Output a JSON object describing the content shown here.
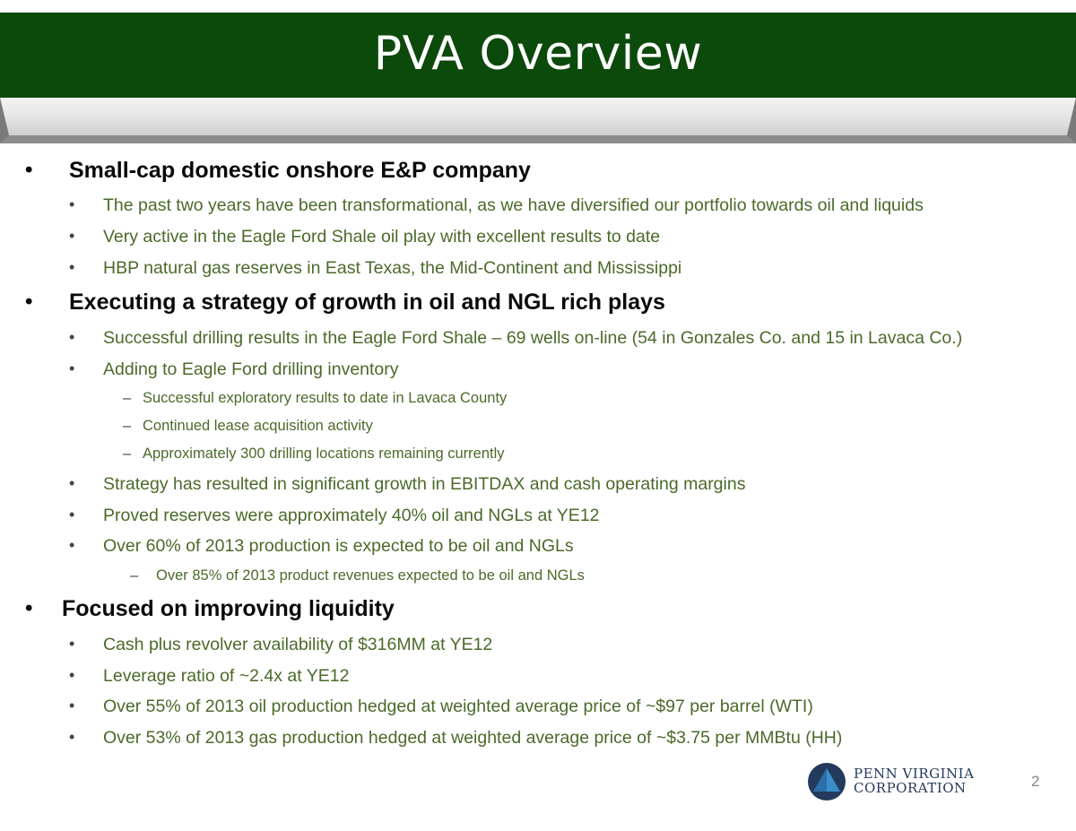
{
  "slide": {
    "title": "PVA Overview",
    "page_number": "2"
  },
  "sections": [
    {
      "heading": "Small-cap domestic onshore E&P company",
      "items": [
        {
          "text": "The past two years have been transformational, as we have diversified our portfolio towards oil and liquids"
        },
        {
          "text": "Very active in the Eagle Ford Shale oil play with excellent results to date"
        },
        {
          "text": "HBP natural gas reserves in East Texas, the Mid-Continent and Mississippi"
        }
      ]
    },
    {
      "heading": "Executing a strategy of growth in oil and NGL rich plays",
      "items": [
        {
          "text": "Successful drilling results in the Eagle Ford Shale – 69 wells on-line (54 in Gonzales Co. and 15 in Lavaca Co.)"
        },
        {
          "text": "Adding to Eagle Ford drilling inventory",
          "subitems": [
            "Successful exploratory results to date in Lavaca County",
            "Continued lease acquisition activity",
            "Approximately 300 drilling locations remaining currently"
          ]
        },
        {
          "text": "Strategy has resulted in significant growth in EBITDAX and cash operating margins"
        },
        {
          "text": "Proved reserves were approximately 40% oil and NGLs at YE12"
        },
        {
          "text": "Over 60% of 2013 production is expected to be oil and NGLs",
          "subitems": [
            "Over 85% of 2013 product revenues expected to be oil and NGLs"
          ]
        }
      ]
    },
    {
      "heading": "Focused on improving liquidity",
      "items": [
        {
          "text": "Cash plus revolver availability of $316MM at YE12"
        },
        {
          "text": "Leverage ratio of ~2.4x at YE12"
        },
        {
          "text": "Over 55% of 2013 oil production hedged at weighted average price of ~$97 per barrel (WTI)"
        },
        {
          "text": "Over 53% of 2013 gas production hedged at weighted average price of ~$3.75 per MMBtu (HH)"
        }
      ]
    }
  ],
  "bullets": {
    "main": "•",
    "sub": "•",
    "dash": "–"
  },
  "logo": {
    "line1": "PENN VIRGINIA",
    "line2": "CORPORATION",
    "icon": "triangle-in-circle-icon"
  },
  "colors": {
    "title_bar": "#0c4a0c",
    "sub_text": "#4a6a2a",
    "logo_navy": "#233a5c",
    "logo_blue": "#3a8fc8"
  }
}
